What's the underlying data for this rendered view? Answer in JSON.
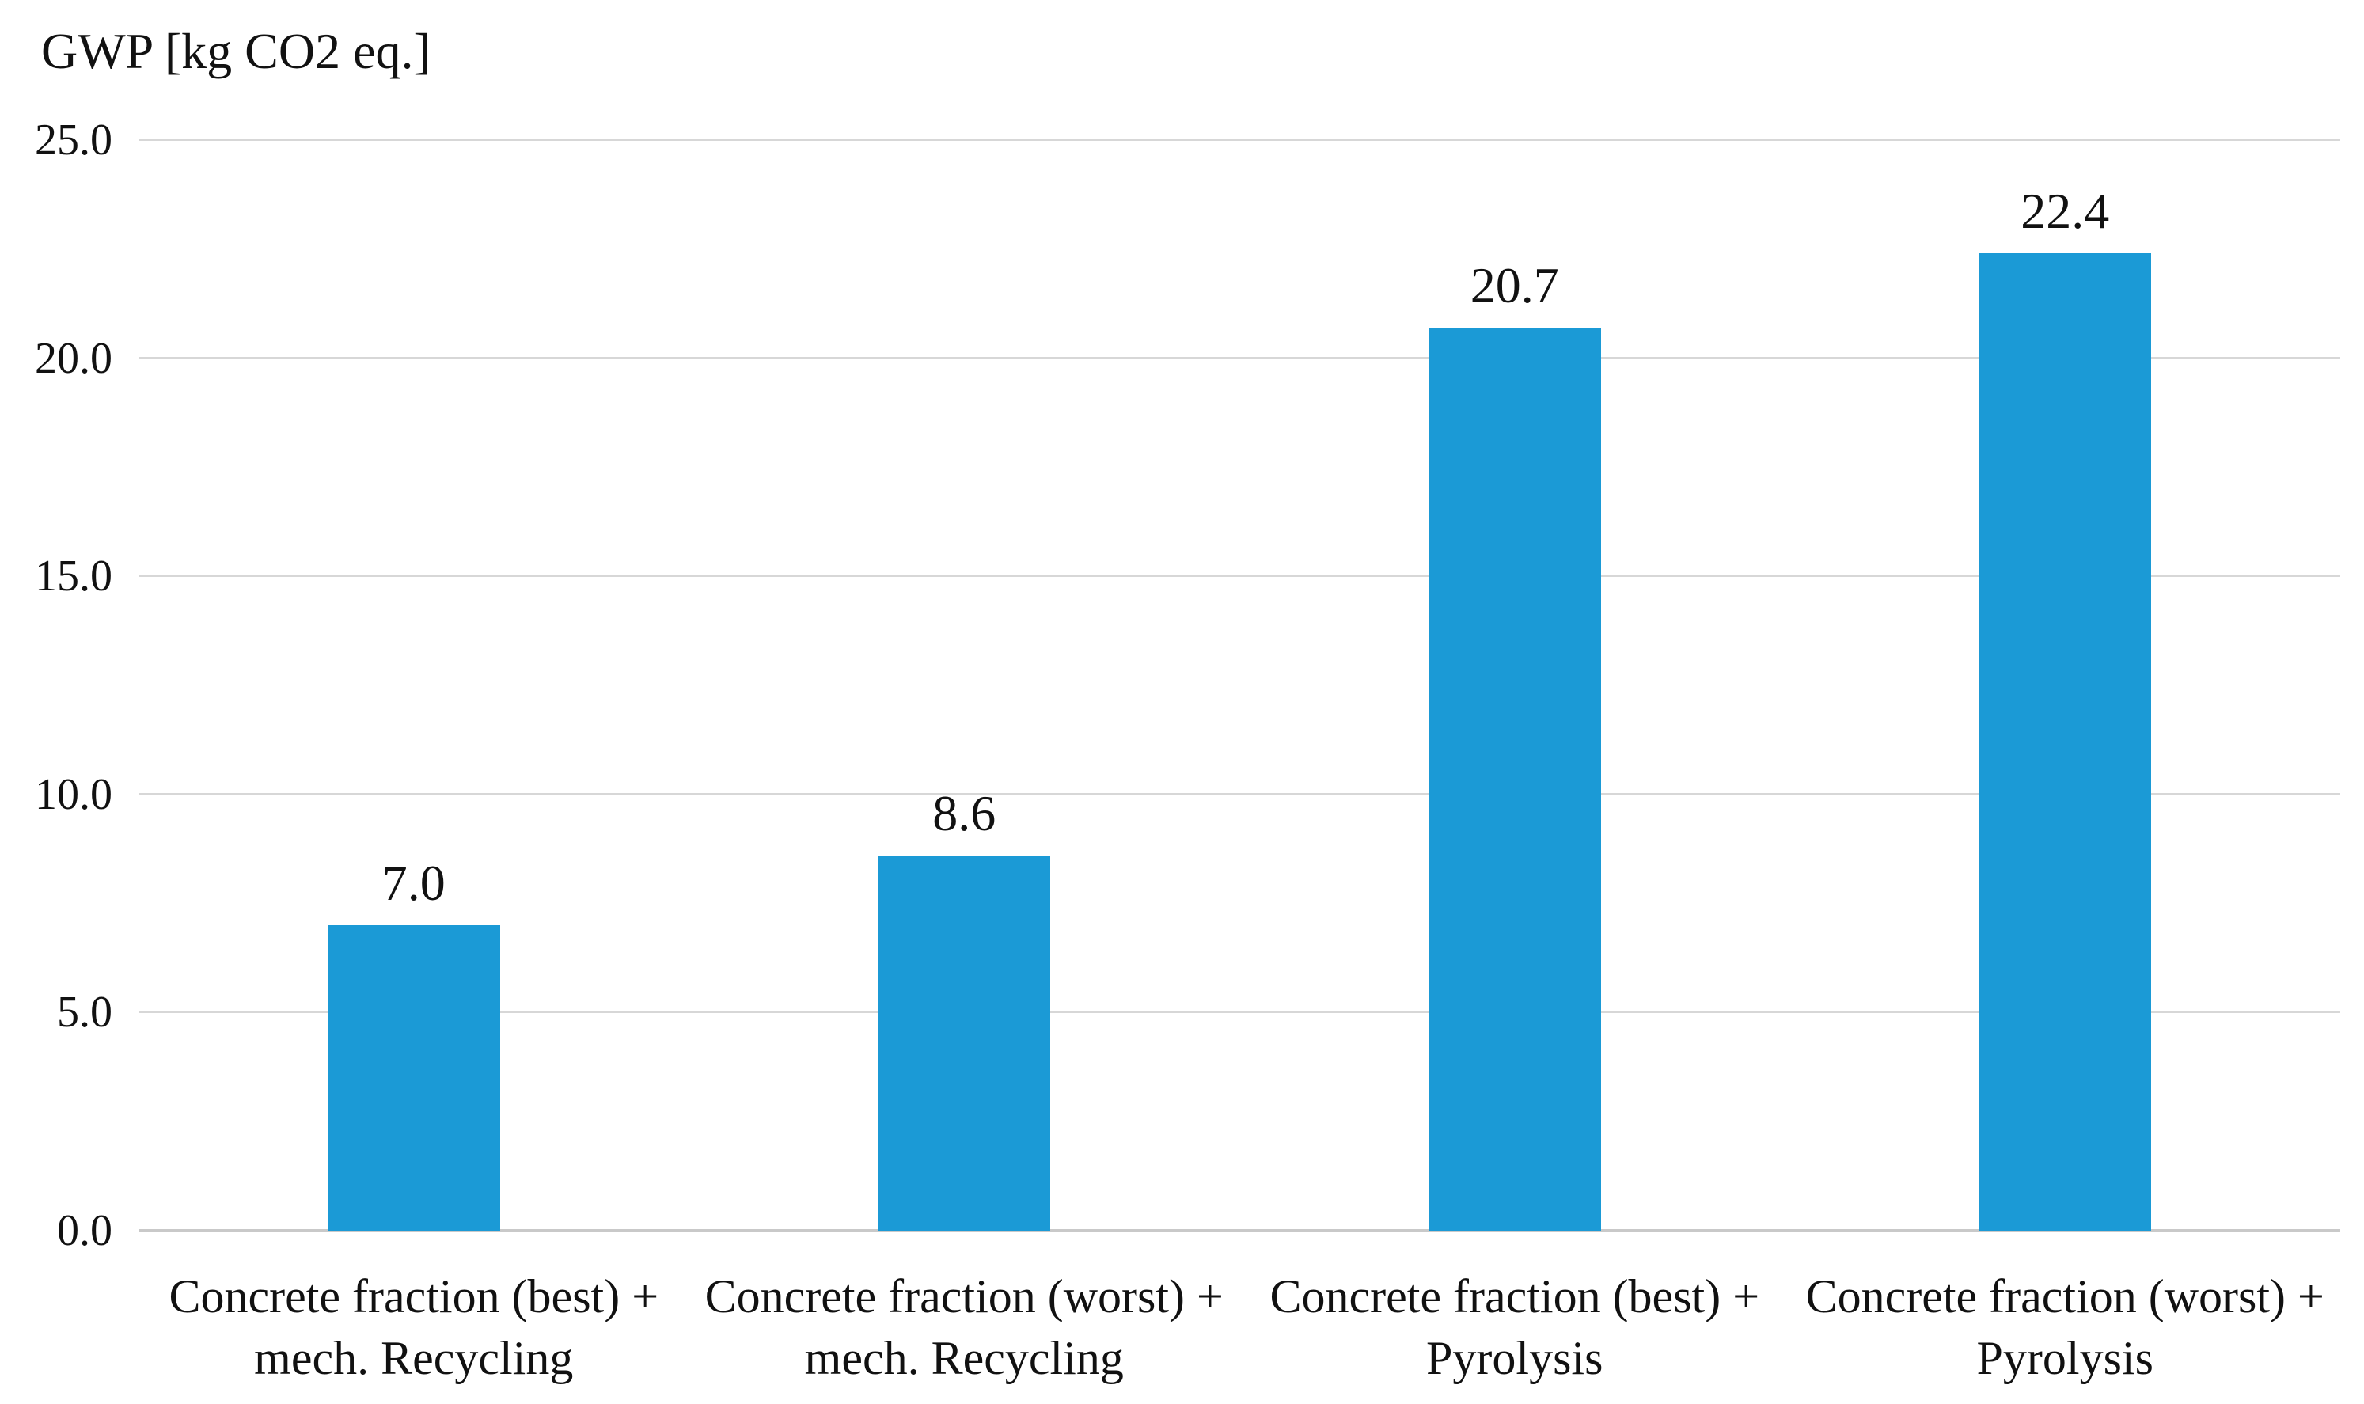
{
  "chart_data": {
    "type": "bar",
    "title": "GWP [kg CO2 eq.]",
    "ylabel": "GWP [kg CO2 eq.]",
    "xlabel": "",
    "categories": [
      "Concrete fraction (best) +\nmech. Recycling",
      "Concrete fraction (worst) +\nmech. Recycling",
      "Concrete fraction (best) +\nPyrolysis",
      "Concrete fraction (worst) +\nPyrolysis"
    ],
    "values": [
      7.0,
      8.6,
      20.7,
      22.4
    ],
    "value_labels": [
      "7.0",
      "8.6",
      "20.7",
      "22.4"
    ],
    "ylim": [
      0,
      25
    ],
    "ytick_interval": 5,
    "ytick_labels": [
      "0.0",
      "5.0",
      "10.0",
      "15.0",
      "20.0",
      "25.0"
    ],
    "grid": "horizontal",
    "legend": "none",
    "colors": {
      "bar_fill": "#1b9ad6",
      "gridline": "#d7d7d7",
      "axis_line": "#c9c9c9",
      "text": "#111111",
      "background": "#ffffff"
    }
  }
}
